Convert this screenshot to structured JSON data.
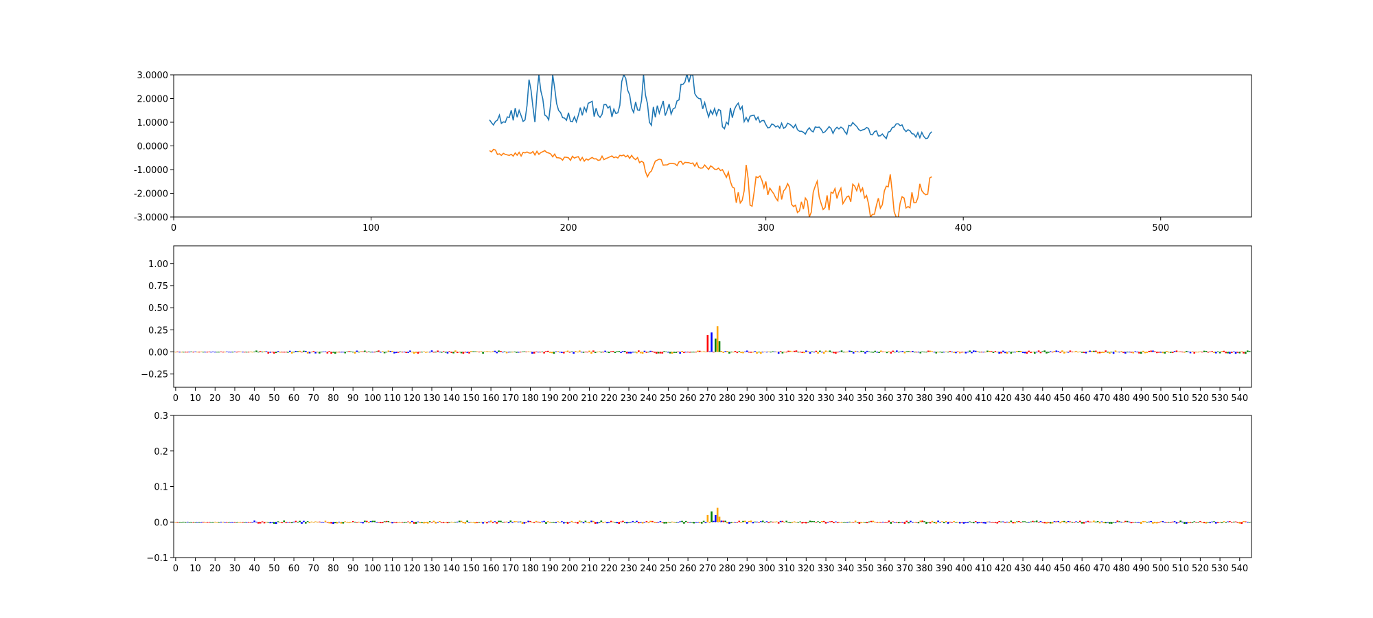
{
  "chart_data": [
    {
      "type": "line",
      "title": "",
      "xlabel": "",
      "ylabel": "",
      "xlim": [
        0,
        546
      ],
      "ylim": [
        -3,
        3
      ],
      "grid": false,
      "xticks": [
        0,
        100,
        200,
        300,
        400,
        500
      ],
      "yticks": [
        3,
        2,
        1,
        0,
        -1,
        -2,
        -3
      ],
      "ytick_labels": [
        "3.0000",
        "2.0000",
        "1.0000",
        "0.0000",
        "-1.0000",
        "-2.0000",
        "-3.0000"
      ],
      "colors": [
        "#1f77b4",
        "#ff7f0e"
      ],
      "series": [
        {
          "x_start": 160,
          "x_end": 384,
          "keypoints": [
            [
              160,
              1.1
            ],
            [
              165,
              1.3
            ],
            [
              170,
              1.2
            ],
            [
              175,
              1.5
            ],
            [
              178,
              1.1
            ],
            [
              180,
              2.8
            ],
            [
              183,
              1.0
            ],
            [
              185,
              3.0
            ],
            [
              188,
              1.3
            ],
            [
              190,
              1.1
            ],
            [
              192,
              3.0
            ],
            [
              195,
              1.5
            ],
            [
              200,
              1.4
            ],
            [
              205,
              1.3
            ],
            [
              210,
              1.8
            ],
            [
              215,
              1.3
            ],
            [
              220,
              1.6
            ],
            [
              225,
              1.4
            ],
            [
              228,
              3.0
            ],
            [
              232,
              1.6
            ],
            [
              236,
              1.5
            ],
            [
              238,
              3.0
            ],
            [
              241,
              1.0
            ],
            [
              245,
              1.7
            ],
            [
              250,
              1.5
            ],
            [
              255,
              1.9
            ],
            [
              258,
              2.6
            ],
            [
              262,
              3.0
            ],
            [
              266,
              2.0
            ],
            [
              270,
              1.5
            ],
            [
              275,
              1.3
            ],
            [
              280,
              1.0
            ],
            [
              285,
              1.7
            ],
            [
              290,
              1.2
            ],
            [
              295,
              1.1
            ],
            [
              300,
              0.9
            ],
            [
              305,
              0.8
            ],
            [
              310,
              0.8
            ],
            [
              315,
              0.9
            ],
            [
              320,
              0.5
            ],
            [
              325,
              0.8
            ],
            [
              330,
              0.6
            ],
            [
              335,
              0.7
            ],
            [
              340,
              0.6
            ],
            [
              345,
              0.9
            ],
            [
              350,
              0.7
            ],
            [
              355,
              0.6
            ],
            [
              360,
              0.4
            ],
            [
              365,
              0.8
            ],
            [
              370,
              0.7
            ],
            [
              375,
              0.5
            ],
            [
              380,
              0.4
            ],
            [
              384,
              0.6
            ]
          ]
        },
        {
          "x_start": 160,
          "x_end": 384,
          "keypoints": [
            [
              160,
              -0.2
            ],
            [
              170,
              -0.4
            ],
            [
              180,
              -0.3
            ],
            [
              190,
              -0.3
            ],
            [
              195,
              -0.5
            ],
            [
              200,
              -0.5
            ],
            [
              210,
              -0.6
            ],
            [
              220,
              -0.5
            ],
            [
              230,
              -0.4
            ],
            [
              238,
              -0.7
            ],
            [
              240,
              -1.3
            ],
            [
              245,
              -0.6
            ],
            [
              250,
              -0.8
            ],
            [
              260,
              -0.7
            ],
            [
              270,
              -0.9
            ],
            [
              278,
              -1.0
            ],
            [
              282,
              -1.5
            ],
            [
              285,
              -2.4
            ],
            [
              288,
              -2.3
            ],
            [
              290,
              -0.8
            ],
            [
              292,
              -2.5
            ],
            [
              295,
              -1.3
            ],
            [
              300,
              -1.5
            ],
            [
              305,
              -2.2
            ],
            [
              310,
              -1.8
            ],
            [
              315,
              -2.5
            ],
            [
              320,
              -2.2
            ],
            [
              322,
              -3.0
            ],
            [
              325,
              -1.7
            ],
            [
              330,
              -2.6
            ],
            [
              335,
              -1.8
            ],
            [
              340,
              -2.3
            ],
            [
              345,
              -1.7
            ],
            [
              350,
              -2.2
            ],
            [
              353,
              -3.0
            ],
            [
              356,
              -2.5
            ],
            [
              360,
              -1.9
            ],
            [
              363,
              -1.2
            ],
            [
              366,
              -3.0
            ],
            [
              370,
              -2.2
            ],
            [
              375,
              -2.4
            ],
            [
              378,
              -1.6
            ],
            [
              380,
              -2.0
            ],
            [
              384,
              -1.3
            ]
          ]
        }
      ]
    },
    {
      "type": "bar",
      "title": "",
      "xlabel": "",
      "ylabel": "",
      "xlim": [
        -1,
        546
      ],
      "ylim": [
        -0.4,
        1.2
      ],
      "grid": false,
      "xtick_step": 10,
      "xtick_max": 540,
      "yticks": [
        1.0,
        0.75,
        0.5,
        0.25,
        0.0,
        -0.25
      ],
      "ytick_labels": [
        "1.00",
        "0.75",
        "0.50",
        "0.25",
        "0.00",
        "−0.25"
      ],
      "colors": [
        "#008000",
        "#0000ff",
        "#ffa500",
        "#ff0000"
      ],
      "peak_values": {
        "270": 0.19,
        "272": 0.22,
        "274": 0.15,
        "275": 0.29,
        "276": 0.12
      }
    },
    {
      "type": "bar",
      "title": "",
      "xlabel": "",
      "ylabel": "",
      "xlim": [
        -1,
        546
      ],
      "ylim": [
        -0.1,
        0.3
      ],
      "grid": false,
      "xtick_step": 10,
      "xtick_max": 540,
      "yticks": [
        0.3,
        0.2,
        0.1,
        0.0,
        -0.1
      ],
      "ytick_labels": [
        "0.3",
        "0.2",
        "0.1",
        "0.0",
        "−0.1"
      ],
      "colors": [
        "#008000",
        "#0000ff",
        "#ffa500",
        "#ff0000"
      ],
      "peak_values": {
        "270": 0.02,
        "272": 0.03,
        "274": 0.02,
        "275": 0.04,
        "276": 0.015
      }
    }
  ]
}
